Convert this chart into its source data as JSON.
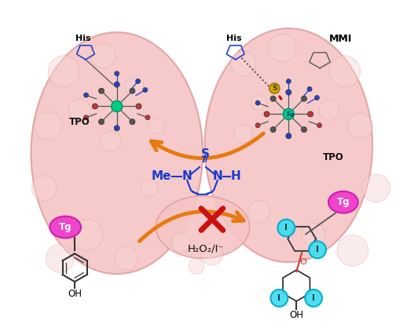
{
  "bg_color": "#ffffff",
  "thyroid_color": "#f5c5c5",
  "thyroid_edge": "#e0a0a0",
  "arrow_color": "#e87a10",
  "label_TPO_left": "TPO",
  "label_TPO_right": "TPO",
  "label_His_left": "His",
  "label_His_right": "His",
  "label_MMI": "MMI",
  "label_Fe": "Fe",
  "label_S": "S",
  "label_Tg_left": "Tg",
  "label_Tg_right": "Tg",
  "label_H2O2": "H₂O₂/I⁻",
  "label_OH": "OH",
  "label_I": "I",
  "label_Me": "Me",
  "figsize": [
    5.18,
    4.18
  ],
  "dpi": 100
}
